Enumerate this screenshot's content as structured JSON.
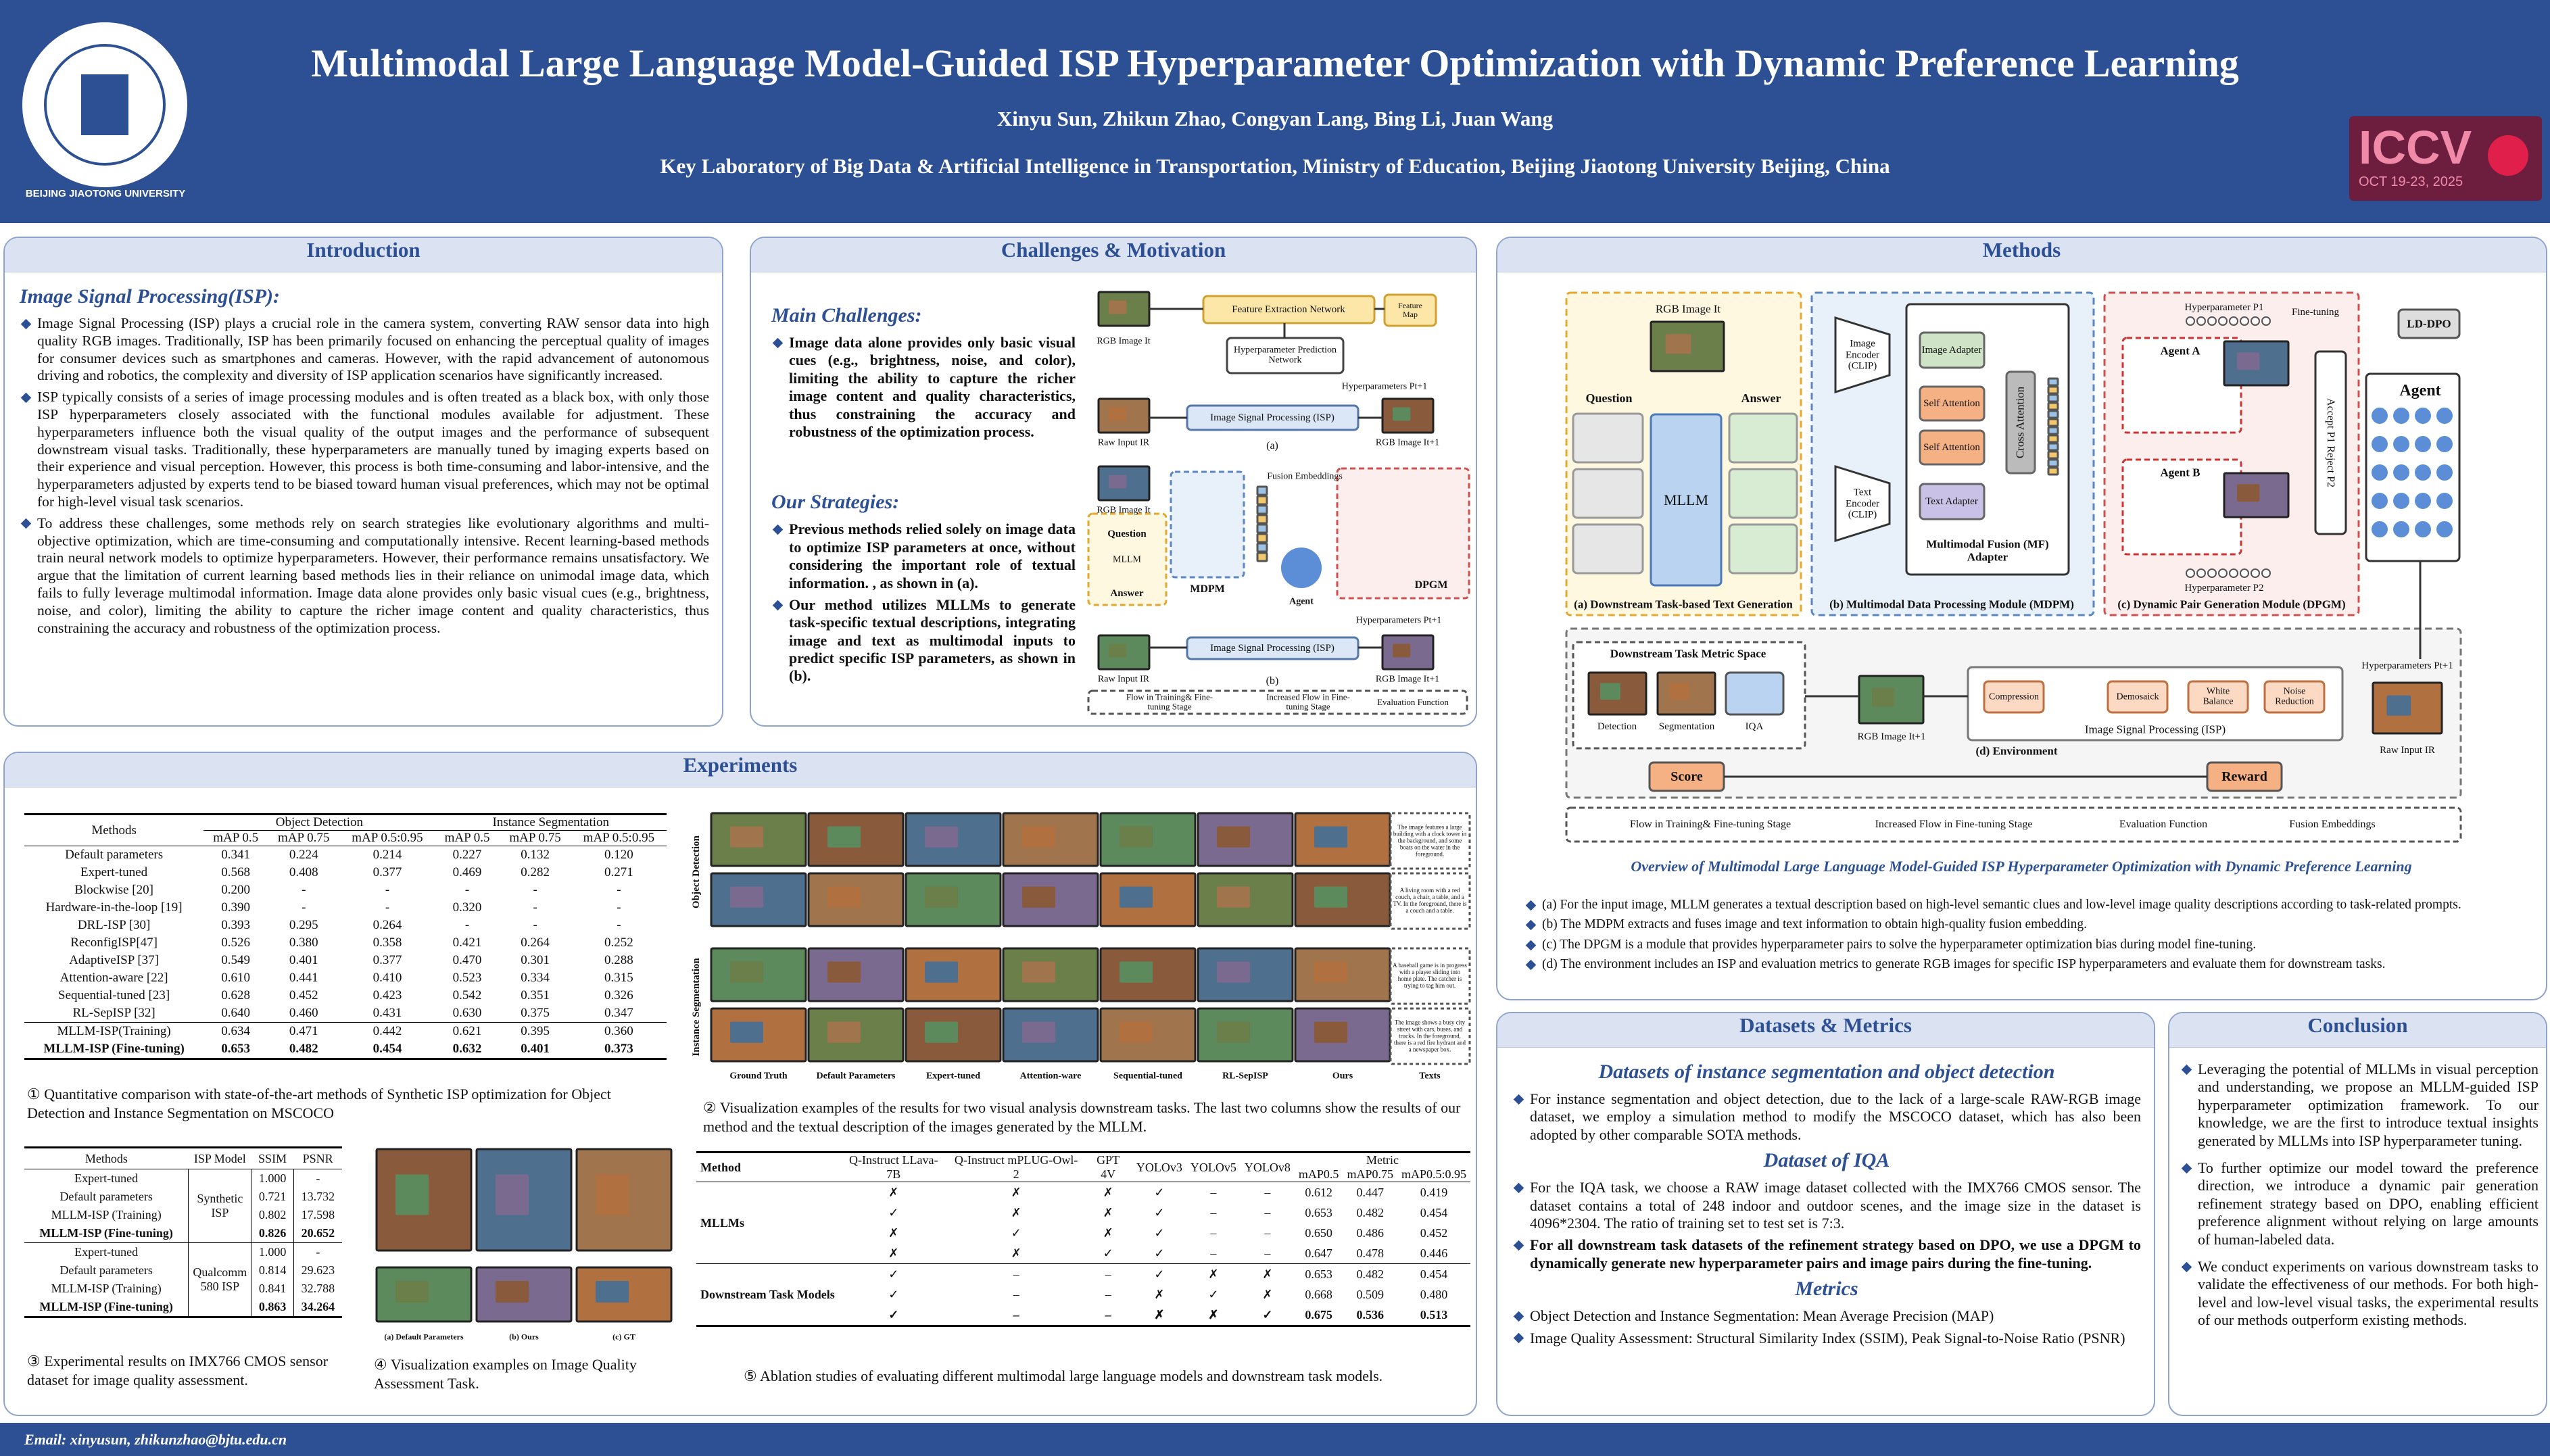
{
  "header": {
    "title": "Multimodal Large Language Model-Guided ISP Hyperparameter Optimization with Dynamic Preference Learning",
    "authors": "Xinyu Sun, Zhikun Zhao, Congyan Lang, Bing Li, Juan Wang",
    "affiliation": "Key Laboratory of Big Data & Artificial Intelligence in Transportation, Ministry of Education, Beijing Jiaotong University Beijing, China",
    "logo_left": "BEIJING JIAOTONG UNIVERSITY",
    "logo_right": "ICCV",
    "logo_right_date": "OCT 19-23, 2025"
  },
  "intro": {
    "heading": "Introduction",
    "subheading": "Image Signal Processing(ISP):",
    "paragraphs": [
      "Image Signal Processing (ISP) plays a crucial role in the camera system, converting RAW sensor data into high quality RGB images. Traditionally, ISP has been primarily focused on enhancing the perceptual quality of images for consumer devices such as smartphones and cameras. However, with the rapid advancement of autonomous driving and robotics, the complexity and diversity of ISP application scenarios have significantly increased.",
      "ISP typically consists of a series of image processing modules and is often treated as a black box, with only those ISP hyperparameters closely associated with the functional modules available for adjustment. These hyperparameters influence both the visual quality of the output images and the performance of subsequent downstream visual tasks. Traditionally, these hyperparameters are manually tuned by imaging experts based on their experience and visual perception. However, this process is both time-consuming and labor-intensive, and the hyperparameters adjusted by experts tend to be biased toward human visual preferences, which may not be optimal for high-level visual task scenarios.",
      "To address these challenges, some methods rely on search strategies like evolutionary algorithms and multi-objective optimization, which are time-consuming and computationally intensive. Recent learning-based methods train neural network models to optimize hyperparameters. However, their performance remains unsatisfactory. We argue that the limitation of current learning based methods lies in their reliance on unimodal image data, which fails to fully leverage multimodal information. Image data alone provides only basic visual cues (e.g., brightness, noise, and color), limiting the ability to capture the richer image content and quality characteristics, thus constraining the accuracy and robustness of the optimization process."
    ]
  },
  "challenges": {
    "heading": "Challenges & Motivation",
    "main_title": "Main Challenges:",
    "main": [
      "Image data alone provides only basic visual cues (e.g., brightness, noise, and color), limiting the ability to capture the richer image content and quality characteristics, thus constraining the accuracy and robustness of the optimization process."
    ],
    "strategies_title": "Our Strategies:",
    "strategies": [
      "Previous methods relied solely on image data to optimize ISP parameters at once, without considering the important role of textual information. , as shown in (a).",
      "Our method utilizes MLLMs to generate task-specific textual descriptions, integrating image and text as multimodal inputs to predict specific ISP parameters, as shown in (b)."
    ],
    "figure_labels": [
      "RGB Image It",
      "Feature Extraction Network",
      "Feature Map",
      "Hyperparameter Prediction Network",
      "Hyperparameters Pt+1",
      "Raw Input IR",
      "Image Signal Processing (ISP)",
      "RGB Image It+1",
      "(a)",
      "RGB Image It",
      "Question",
      "MLLM",
      "Answer",
      "MDPM",
      "Fusion Embeddings",
      "DPGM",
      "Agent",
      "Hyperparameters Pt+1",
      "Raw Input IR",
      "Image Signal Processing (ISP)",
      "RGB Image It+1",
      "(b)",
      "Flow in Training& Fine-tuning Stage",
      "Increased Flow in Fine-tuning Stage",
      "Evaluation Function"
    ]
  },
  "methods": {
    "heading": "Methods",
    "figure_labels": [
      "RGB Image It",
      "Question",
      "Answer",
      "MLLM",
      "Image Encoder (CLIP)",
      "Text Encoder (CLIP)",
      "Image Adapter",
      "Self Attention",
      "Self Attention",
      "Text Adapter",
      "Cross Attention",
      "Multimodal Fusion (MF) Adapter",
      "Hyperparameter P1",
      "Fine-tuning",
      "Agent A",
      "Agent B",
      "Hyperparameter P2",
      "Accept P1 Reject P2",
      "LD-DPO",
      "Agent",
      "Downstream Task Metric Space",
      "Detection",
      "Segmentation",
      "IQA",
      "RGB Image It+1",
      "Image Signal Processing (ISP)",
      "Compression",
      "Demosaick",
      "White Balance",
      "Noise Reduction",
      "Raw Input IR",
      "Hyperparameters Pt+1",
      "Score",
      "Reward"
    ],
    "panels": [
      "(a) Downstream Task-based Text Generation",
      "(b) Multimodal Data Processing Module (MDPM)",
      "(c) Dynamic Pair Generation Module (DPGM)",
      "(d) Environment"
    ],
    "legend": [
      "Flow in Training& Fine-tuning Stage",
      "Increased Flow in Fine-tuning Stage",
      "Evaluation Function",
      "Fusion Embeddings"
    ],
    "caption": "Overview of Multimodal Large Language Model-Guided ISP Hyperparameter Optimization with Dynamic Preference Learning",
    "bullets": [
      "(a) For the input image, MLLM generates a textual description based on high-level semantic clues and low-level image quality descriptions according to task-related prompts.",
      "(b) The MDPM extracts and fuses image and text information to obtain high-quality fusion embedding.",
      "(c) The DPGM is a module that provides hyperparameter pairs to solve the hyperparameter optimization bias during model fine-tuning.",
      "(d) The environment includes an ISP and evaluation metrics to generate RGB images for specific ISP hyperparameters and evaluate them for downstream tasks."
    ]
  },
  "experiments": {
    "heading": "Experiments",
    "table1": {
      "groups": [
        "Methods",
        "Object Detection",
        "Instance Segmentation"
      ],
      "columns": [
        "mAP 0.5",
        "mAP 0.75",
        "mAP 0.5:0.95",
        "mAP 0.5",
        "mAP 0.75",
        "mAP 0.5:0.95"
      ],
      "rows": [
        [
          "Default parameters",
          "0.341",
          "0.224",
          "0.214",
          "0.227",
          "0.132",
          "0.120"
        ],
        [
          "Expert-tuned",
          "0.568",
          "0.408",
          "0.377",
          "0.469",
          "0.282",
          "0.271"
        ],
        [
          "Blockwise [20]",
          "0.200",
          "-",
          "-",
          "-",
          "-",
          "-"
        ],
        [
          "Hardware-in-the-loop [19]",
          "0.390",
          "-",
          "-",
          "0.320",
          "-",
          "-"
        ],
        [
          "DRL-ISP [30]",
          "0.393",
          "0.295",
          "0.264",
          "-",
          "-",
          "-"
        ],
        [
          "ReconfigISP[47]",
          "0.526",
          "0.380",
          "0.358",
          "0.421",
          "0.264",
          "0.252"
        ],
        [
          "AdaptiveISP [37]",
          "0.549",
          "0.401",
          "0.377",
          "0.470",
          "0.301",
          "0.288"
        ],
        [
          "Attention-aware [22]",
          "0.610",
          "0.441",
          "0.410",
          "0.523",
          "0.334",
          "0.315"
        ],
        [
          "Sequential-tuned [23]",
          "0.628",
          "0.452",
          "0.423",
          "0.542",
          "0.351",
          "0.326"
        ],
        [
          "RL-SepISP [32]",
          "0.640",
          "0.460",
          "0.431",
          "0.630",
          "0.375",
          "0.347"
        ],
        [
          "MLLM-ISP(Training)",
          "0.634",
          "0.471",
          "0.442",
          "0.621",
          "0.395",
          "0.360"
        ],
        [
          "MLLM-ISP (Fine-tuning)",
          "0.653",
          "0.482",
          "0.454",
          "0.632",
          "0.401",
          "0.373"
        ]
      ]
    },
    "caption1": "① Quantitative comparison with state-of-the-art methods of Synthetic ISP optimization for Object Detection and Instance Segmentation on MSCOCO",
    "figure2": {
      "columns": [
        "Ground Truth",
        "Default Parameters",
        "Expert-tuned",
        "Attention-ware",
        "Sequential-tuned",
        "RL-SepISP",
        "Ours",
        "Texts"
      ],
      "rows": [
        "Object Detection",
        "Instance Segmentation"
      ],
      "texts": [
        "The image features a large building with a clock tower in the background, and some boats on the water in the foreground.",
        "A living room with a red couch, a chair, a table, and a TV. In the foreground, there is a couch and a table.",
        "A baseball game is in progress with a player sliding into home plate. The catcher is trying to tag him out.",
        "The image shows a busy city street with cars, buses, and trucks. In the foreground, there is a red fire hydrant and a newspaper box."
      ]
    },
    "caption2": "② Visualization examples of the results for two visual analysis downstream tasks. The last two columns show the results of our method and the textual description of the images generated by the MLLM.",
    "table3": {
      "columns": [
        "Methods",
        "ISP Model",
        "SSIM",
        "PSNR"
      ],
      "groups": [
        {
          "isp": "Synthetic ISP",
          "rows": [
            [
              "Expert-tuned",
              "1.000",
              "-"
            ],
            [
              "Default parameters",
              "0.721",
              "13.732"
            ],
            [
              "MLLM-ISP (Training)",
              "0.802",
              "17.598"
            ],
            [
              "MLLM-ISP (Fine-tuning)",
              "0.826",
              "20.652"
            ]
          ]
        },
        {
          "isp": "Qualcomm 580 ISP",
          "rows": [
            [
              "Expert-tuned",
              "1.000",
              "-"
            ],
            [
              "Default parameters",
              "0.814",
              "29.623"
            ],
            [
              "MLLM-ISP (Training)",
              "0.841",
              "32.788"
            ],
            [
              "MLLM-ISP (Fine-tuning)",
              "0.863",
              "34.264"
            ]
          ]
        }
      ]
    },
    "caption3": "③ Experimental results on IMX766 CMOS sensor dataset for image quality assessment.",
    "figure4": [
      "(a) Default Parameters",
      "(b) Ours",
      "(c) GT"
    ],
    "caption4": "④ Visualization examples on Image Quality Assessment Task.",
    "table5": {
      "columns": [
        "Method",
        "Q-Instruct LLava-7B",
        "Q-Instruct mPLUG-Owl-2",
        "GPT 4V",
        "YOLOv3",
        "YOLOv5",
        "YOLOv8",
        "Metric"
      ],
      "metrics": [
        "mAP0.5",
        "mAP0.75",
        "mAP0.5:0.95"
      ],
      "groups": [
        {
          "name": "MLLMs",
          "rows": [
            [
              "✗",
              "✗",
              "✗",
              "✓",
              "–",
              "–",
              "0.612",
              "0.447",
              "0.419"
            ],
            [
              "✓",
              "✗",
              "✗",
              "✓",
              "–",
              "–",
              "0.653",
              "0.482",
              "0.454"
            ],
            [
              "✗",
              "✓",
              "✗",
              "✓",
              "–",
              "–",
              "0.650",
              "0.486",
              "0.452"
            ],
            [
              "✗",
              "✗",
              "✓",
              "✓",
              "–",
              "–",
              "0.647",
              "0.478",
              "0.446"
            ]
          ]
        },
        {
          "name": "Downstream Task Models",
          "rows": [
            [
              "✓",
              "–",
              "–",
              "✓",
              "✗",
              "✗",
              "0.653",
              "0.482",
              "0.454"
            ],
            [
              "✓",
              "–",
              "–",
              "✗",
              "✓",
              "✗",
              "0.668",
              "0.509",
              "0.480"
            ],
            [
              "✓",
              "–",
              "–",
              "✗",
              "✗",
              "✓",
              "0.675",
              "0.536",
              "0.513"
            ]
          ]
        }
      ]
    },
    "caption5": "⑤ Ablation studies of evaluating different multimodal large language models and downstream task models."
  },
  "datasets": {
    "heading": "Datasets & Metrics",
    "sub1": "Datasets of instance segmentation and object detection",
    "p1": "For instance segmentation and object detection, due to the lack of a large-scale RAW-RGB image dataset, we employ a simulation method to modify the MSCOCO dataset, which has also been adopted by other comparable SOTA methods.",
    "sub2": "Dataset of IQA",
    "p2": "For the IQA task, we choose a RAW image dataset collected with the IMX766 CMOS sensor. The dataset contains a total of 248 indoor and outdoor scenes, and the image size in the dataset is 4096*2304. The ratio of training set to test set is 7:3.",
    "p3": "For all downstream task datasets of the refinement strategy based on DPO, we use a DPGM to dynamically generate new hyperparameter pairs and image pairs during the fine-tuning.",
    "sub3": "Metrics",
    "metrics": [
      "Object Detection and Instance Segmentation: Mean Average Precision (MAP)",
      "Image Quality Assessment: Structural Similarity Index (SSIM), Peak Signal-to-Noise Ratio (PSNR)"
    ]
  },
  "conclusion": {
    "heading": "Conclusion",
    "bullets": [
      "Leveraging the potential of MLLMs in visual perception and understanding, we propose an MLLM-guided ISP hyperparameter optimization framework. To our knowledge, we are the first to introduce textual insights generated by MLLMs into ISP hyperparameter tuning.",
      "To further optimize our model toward the preference direction, we introduce a dynamic pair generation refinement strategy based on DPO, enabling efficient preference alignment without relying on large amounts of human-labeled data.",
      "We conduct experiments on various downstream tasks to validate the effectiveness of our methods. For both high-level and low-level visual tasks, the experimental results of our methods outperform existing methods."
    ]
  },
  "footer": {
    "email_label": "Email:",
    "email": "xinyusun,  zhikunzhao@bjtu.edu.cn"
  }
}
